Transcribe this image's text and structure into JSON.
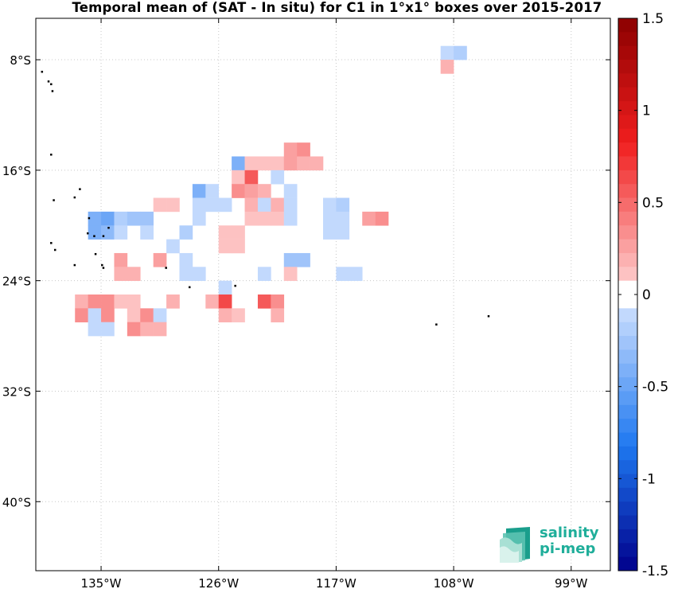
{
  "title": "Temporal mean of (SAT - In situ) for C1 in 1°x1° boxes over 2015-2017",
  "map": {
    "lon_range": [
      -140,
      -96
    ],
    "lat_range": [
      -45,
      -5
    ],
    "lon_ticks": [
      {
        "value": -135,
        "label": "135°W"
      },
      {
        "value": -126,
        "label": "126°W"
      },
      {
        "value": -117,
        "label": "117°W"
      },
      {
        "value": -108,
        "label": "108°W"
      },
      {
        "value": -99,
        "label": "99°W"
      }
    ],
    "lat_ticks": [
      {
        "value": -8,
        "label": "8°S"
      },
      {
        "value": -16,
        "label": "16°S"
      },
      {
        "value": -24,
        "label": "24°S"
      },
      {
        "value": -32,
        "label": "32°S"
      },
      {
        "value": -40,
        "label": "40°S"
      }
    ],
    "grid": true,
    "grid_style": "dotted"
  },
  "colorbar": {
    "min": -1.5,
    "max": 1.5,
    "ticks": [
      "1.5",
      "1",
      "0.5",
      "0",
      "-0.5",
      "-1",
      "-1.5"
    ],
    "tick_values": [
      1.5,
      1,
      0.5,
      0,
      -0.5,
      -1,
      -1.5
    ],
    "steps": 40,
    "low_color": "#00008b",
    "mid_color": "#ffffff",
    "high_color": "#8b0000"
  },
  "cells": [
    {
      "lon": -109,
      "lat": -7,
      "v": -0.1
    },
    {
      "lon": -108,
      "lat": -7,
      "v": -0.2
    },
    {
      "lon": -109,
      "lat": -8,
      "v": 0.2
    },
    {
      "lon": -121,
      "lat": -14,
      "v": 0.25
    },
    {
      "lon": -120,
      "lat": -14,
      "v": 0.35
    },
    {
      "lon": -125,
      "lat": -15,
      "v": -0.45
    },
    {
      "lon": -124,
      "lat": -15,
      "v": 0.1
    },
    {
      "lon": -123,
      "lat": -15,
      "v": 0.1
    },
    {
      "lon": -122,
      "lat": -15,
      "v": 0.1
    },
    {
      "lon": -121,
      "lat": -15,
      "v": 0.25
    },
    {
      "lon": -120,
      "lat": -15,
      "v": 0.2
    },
    {
      "lon": -119,
      "lat": -15,
      "v": 0.2
    },
    {
      "lon": -125,
      "lat": -16,
      "v": 0.1
    },
    {
      "lon": -124,
      "lat": -16,
      "v": 0.55
    },
    {
      "lon": -122,
      "lat": -16,
      "v": -0.1
    },
    {
      "lon": -128,
      "lat": -17,
      "v": -0.4
    },
    {
      "lon": -127,
      "lat": -17,
      "v": -0.1
    },
    {
      "lon": -125,
      "lat": -17,
      "v": 0.3
    },
    {
      "lon": -124,
      "lat": -17,
      "v": 0.25
    },
    {
      "lon": -123,
      "lat": -17,
      "v": 0.15
    },
    {
      "lon": -121,
      "lat": -17,
      "v": -0.1
    },
    {
      "lon": -131,
      "lat": -18,
      "v": 0.1
    },
    {
      "lon": -130,
      "lat": -18,
      "v": 0.1
    },
    {
      "lon": -128,
      "lat": -18,
      "v": -0.1
    },
    {
      "lon": -127,
      "lat": -18,
      "v": -0.1
    },
    {
      "lon": -126,
      "lat": -18,
      "v": -0.1
    },
    {
      "lon": -124,
      "lat": -18,
      "v": 0.2
    },
    {
      "lon": -123,
      "lat": -18,
      "v": -0.1
    },
    {
      "lon": -122,
      "lat": -18,
      "v": 0.15
    },
    {
      "lon": -121,
      "lat": -18,
      "v": -0.1
    },
    {
      "lon": -118,
      "lat": -18,
      "v": -0.1
    },
    {
      "lon": -117,
      "lat": -18,
      "v": -0.2
    },
    {
      "lon": -136,
      "lat": -19,
      "v": -0.45
    },
    {
      "lon": -135,
      "lat": -19,
      "v": -0.5
    },
    {
      "lon": -134,
      "lat": -19,
      "v": -0.2
    },
    {
      "lon": -133,
      "lat": -19,
      "v": -0.25
    },
    {
      "lon": -132,
      "lat": -19,
      "v": -0.25
    },
    {
      "lon": -128,
      "lat": -19,
      "v": -0.1
    },
    {
      "lon": -124,
      "lat": -19,
      "v": 0.1
    },
    {
      "lon": -123,
      "lat": -19,
      "v": 0.1
    },
    {
      "lon": -122,
      "lat": -19,
      "v": 0.1
    },
    {
      "lon": -121,
      "lat": -19,
      "v": -0.1
    },
    {
      "lon": -118,
      "lat": -19,
      "v": -0.1
    },
    {
      "lon": -117,
      "lat": -19,
      "v": -0.1
    },
    {
      "lon": -115,
      "lat": -19,
      "v": 0.25
    },
    {
      "lon": -114,
      "lat": -19,
      "v": 0.35
    },
    {
      "lon": -136,
      "lat": -20,
      "v": -0.45
    },
    {
      "lon": -135,
      "lat": -20,
      "v": -0.35
    },
    {
      "lon": -134,
      "lat": -20,
      "v": -0.1
    },
    {
      "lon": -132,
      "lat": -20,
      "v": -0.1
    },
    {
      "lon": -129,
      "lat": -20,
      "v": -0.2
    },
    {
      "lon": -126,
      "lat": -20,
      "v": 0.1
    },
    {
      "lon": -125,
      "lat": -20,
      "v": 0.1
    },
    {
      "lon": -118,
      "lat": -20,
      "v": -0.1
    },
    {
      "lon": -117,
      "lat": -20,
      "v": -0.1
    },
    {
      "lon": -130,
      "lat": -21,
      "v": -0.1
    },
    {
      "lon": -126,
      "lat": -21,
      "v": 0.1
    },
    {
      "lon": -125,
      "lat": -21,
      "v": 0.1
    },
    {
      "lon": -134,
      "lat": -22,
      "v": 0.25
    },
    {
      "lon": -131,
      "lat": -22,
      "v": 0.25
    },
    {
      "lon": -129,
      "lat": -22,
      "v": -0.1
    },
    {
      "lon": -121,
      "lat": -22,
      "v": -0.25
    },
    {
      "lon": -120,
      "lat": -22,
      "v": -0.25
    },
    {
      "lon": -134,
      "lat": -23,
      "v": 0.15
    },
    {
      "lon": -133,
      "lat": -23,
      "v": 0.15
    },
    {
      "lon": -129,
      "lat": -23,
      "v": -0.1
    },
    {
      "lon": -128,
      "lat": -23,
      "v": -0.1
    },
    {
      "lon": -123,
      "lat": -23,
      "v": -0.1
    },
    {
      "lon": -121,
      "lat": -23,
      "v": 0.1
    },
    {
      "lon": -117,
      "lat": -23,
      "v": -0.1
    },
    {
      "lon": -116,
      "lat": -23,
      "v": -0.1
    },
    {
      "lon": -126,
      "lat": -24,
      "v": -0.1
    },
    {
      "lon": -137,
      "lat": -25,
      "v": 0.2
    },
    {
      "lon": -136,
      "lat": -25,
      "v": 0.3
    },
    {
      "lon": -135,
      "lat": -25,
      "v": 0.3
    },
    {
      "lon": -134,
      "lat": -25,
      "v": 0.1
    },
    {
      "lon": -133,
      "lat": -25,
      "v": 0.1
    },
    {
      "lon": -130,
      "lat": -25,
      "v": 0.15
    },
    {
      "lon": -127,
      "lat": -25,
      "v": 0.2
    },
    {
      "lon": -126,
      "lat": -25,
      "v": 0.6
    },
    {
      "lon": -123,
      "lat": -25,
      "v": 0.55
    },
    {
      "lon": -122,
      "lat": -25,
      "v": 0.3
    },
    {
      "lon": -137,
      "lat": -26,
      "v": 0.3
    },
    {
      "lon": -136,
      "lat": -26,
      "v": -0.1
    },
    {
      "lon": -135,
      "lat": -26,
      "v": 0.3
    },
    {
      "lon": -133,
      "lat": -26,
      "v": 0.1
    },
    {
      "lon": -132,
      "lat": -26,
      "v": 0.3
    },
    {
      "lon": -131,
      "lat": -26,
      "v": -0.1
    },
    {
      "lon": -126,
      "lat": -26,
      "v": 0.2
    },
    {
      "lon": -125,
      "lat": -26,
      "v": 0.1
    },
    {
      "lon": -122,
      "lat": -26,
      "v": 0.2
    },
    {
      "lon": -136,
      "lat": -27,
      "v": -0.15
    },
    {
      "lon": -135,
      "lat": -27,
      "v": -0.15
    },
    {
      "lon": -133,
      "lat": -27,
      "v": 0.35
    },
    {
      "lon": -132,
      "lat": -27,
      "v": 0.15
    },
    {
      "lon": -131,
      "lat": -27,
      "v": 0.15
    }
  ],
  "land": [
    {
      "lon": -139.6,
      "lat": -8.8
    },
    {
      "lon": -139.1,
      "lat": -9.5
    },
    {
      "lon": -138.9,
      "lat": -9.7
    },
    {
      "lon": -138.8,
      "lat": -10.2
    },
    {
      "lon": -138.9,
      "lat": -14.8
    },
    {
      "lon": -138.7,
      "lat": -18.1
    },
    {
      "lon": -137.1,
      "lat": -17.9
    },
    {
      "lon": -136.7,
      "lat": -17.3
    },
    {
      "lon": -136.0,
      "lat": -19.4
    },
    {
      "lon": -136.1,
      "lat": -20.5
    },
    {
      "lon": -135.6,
      "lat": -20.7
    },
    {
      "lon": -134.9,
      "lat": -20.7
    },
    {
      "lon": -135.5,
      "lat": -22.0
    },
    {
      "lon": -135.0,
      "lat": -22.8
    },
    {
      "lon": -134.9,
      "lat": -23.0
    },
    {
      "lon": -134.5,
      "lat": -20.1
    },
    {
      "lon": -138.9,
      "lat": -21.2
    },
    {
      "lon": -138.6,
      "lat": -21.7
    },
    {
      "lon": -137.1,
      "lat": -22.8
    },
    {
      "lon": -128.3,
      "lat": -24.4
    },
    {
      "lon": -130.1,
      "lat": -23.0
    },
    {
      "lon": -124.8,
      "lat": -24.3
    },
    {
      "lon": -109.4,
      "lat": -27.1
    },
    {
      "lon": -105.4,
      "lat": -26.5
    }
  ],
  "logo": {
    "line1": "salinity",
    "line2": "pi-mep",
    "color": "#1fae9a"
  }
}
